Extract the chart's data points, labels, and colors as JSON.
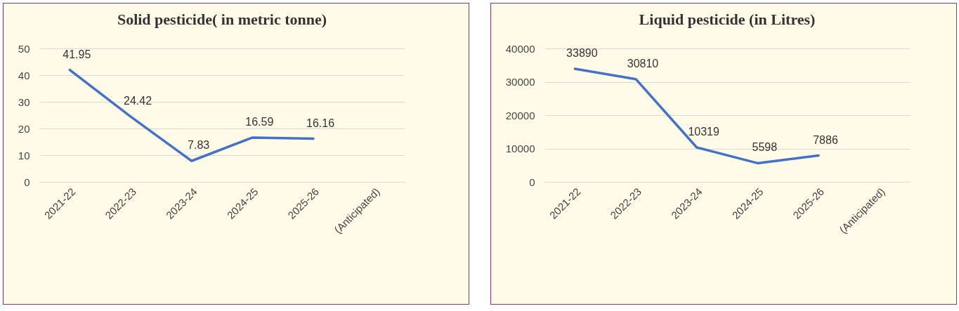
{
  "chart_data": [
    {
      "type": "line",
      "title": "Solid pesticide( in metric tonne)",
      "categories": [
        "2021-22",
        "2022-23",
        "2023-24",
        "2024-25",
        "2025-26",
        "(Anticipated)"
      ],
      "values": [
        41.95,
        24.42,
        7.83,
        16.59,
        16.16,
        null
      ],
      "color": "#4472c4",
      "ylim": [
        0,
        50
      ],
      "yticks": [
        0,
        10,
        20,
        30,
        40,
        50
      ],
      "grid": "y",
      "data_labels": true
    },
    {
      "type": "line",
      "title": "Liquid  pesticide (in Litres)",
      "categories": [
        "2021-22",
        "2022-23",
        "2023-24",
        "2024-25",
        "2025-26",
        "(Anticipated)"
      ],
      "values": [
        33890,
        30810,
        10319,
        5598,
        7886,
        null
      ],
      "color": "#4472c4",
      "ylim": [
        0,
        40000
      ],
      "yticks": [
        0,
        10000,
        20000,
        30000,
        40000
      ],
      "grid": "y",
      "data_labels": true
    }
  ]
}
